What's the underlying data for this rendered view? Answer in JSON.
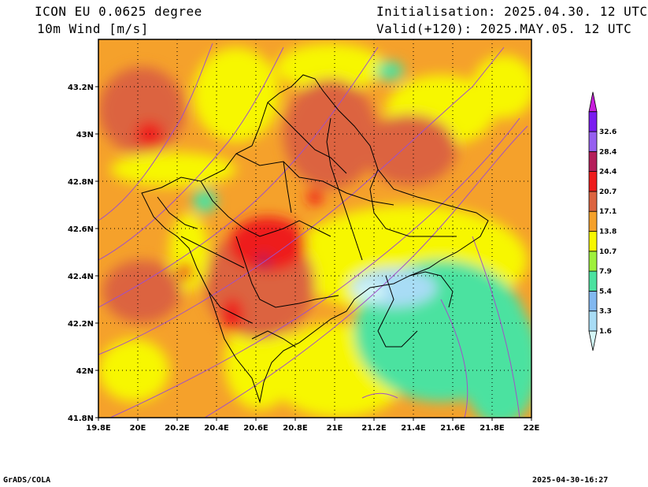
{
  "header": {
    "model": "ICON EU 0.0625 degree",
    "variable": "10m Wind [m/s]",
    "init": "Initialisation: 2025.04.30. 12 UTC",
    "valid": "Valid(+120): 2025.MAY.05. 12 UTC"
  },
  "map": {
    "lon_ticks": [
      "19.8E",
      "20E",
      "20.2E",
      "20.4E",
      "20.6E",
      "20.8E",
      "21E",
      "21.2E",
      "21.4E",
      "21.6E",
      "21.8E",
      "22E"
    ],
    "lat_ticks": [
      "43.2N",
      "43N",
      "42.8N",
      "42.6N",
      "42.4N",
      "42.2N",
      "42N",
      "41.8N"
    ],
    "lon_range": [
      19.8,
      22.0
    ],
    "lat_range": [
      41.8,
      43.4
    ]
  },
  "colorbar": {
    "levels": [
      "1.6",
      "3.3",
      "5.4",
      "7.9",
      "10.7",
      "13.8",
      "17.1",
      "20.7",
      "24.4",
      "28.4",
      "32.6"
    ],
    "colors": [
      "#d4f7f7",
      "#a8dcf5",
      "#82b8f0",
      "#4ce2a0",
      "#9ef03c",
      "#f7f700",
      "#f5a12b",
      "#dc6440",
      "#ee1c1c",
      "#b41e5a",
      "#9660f0",
      "#7a1cf0",
      "#c81edc"
    ]
  },
  "footer": {
    "left": "GrADS/COLA",
    "right": "2025-04-30-16:27"
  }
}
